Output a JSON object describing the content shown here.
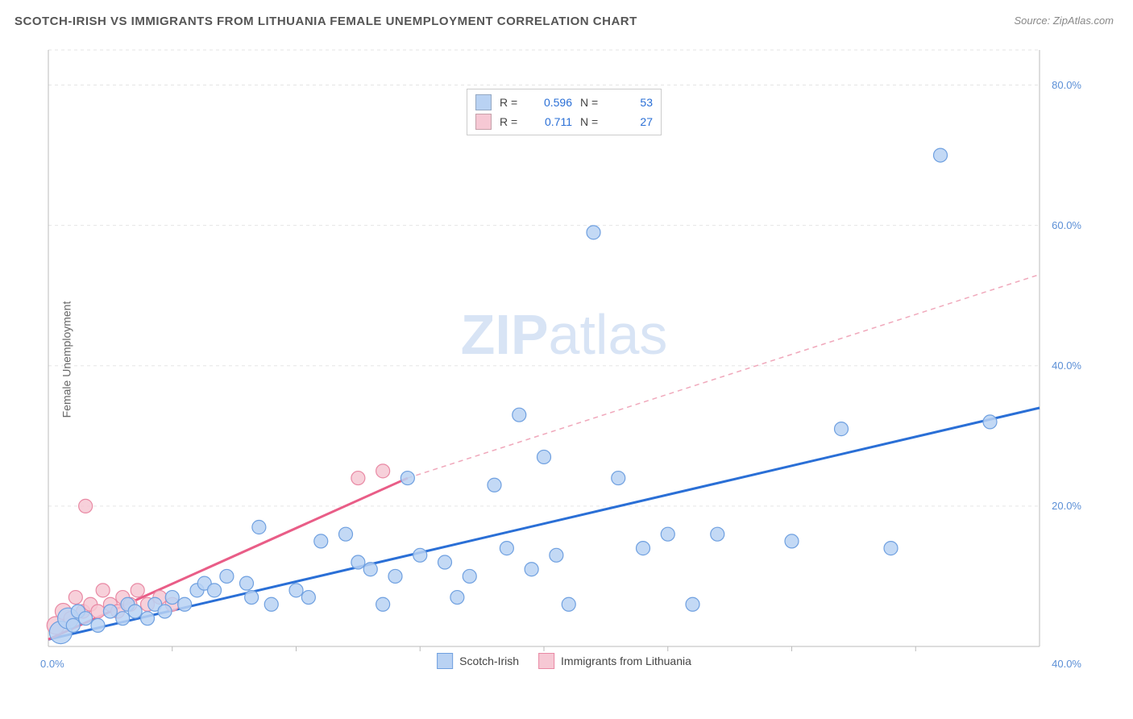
{
  "title": "SCOTCH-IRISH VS IMMIGRANTS FROM LITHUANIA FEMALE UNEMPLOYMENT CORRELATION CHART",
  "source": "Source: ZipAtlas.com",
  "y_axis_label": "Female Unemployment",
  "watermark": {
    "part1": "ZIP",
    "part2": "atlas"
  },
  "chart": {
    "type": "scatter",
    "background_color": "#ffffff",
    "grid_color": "#e5e5e5",
    "grid_dash": "4,4",
    "axis_color": "#bbbbbb",
    "tick_color": "#5b8fd6",
    "xlim": [
      0,
      40
    ],
    "ylim": [
      0,
      85
    ],
    "x_ticks": [
      {
        "v": 0,
        "label": "0.0%"
      },
      {
        "v": 40,
        "label": "40.0%"
      }
    ],
    "x_minor_ticks": [
      5,
      10,
      15,
      20,
      25,
      30,
      35
    ],
    "y_ticks": [
      {
        "v": 20,
        "label": "20.0%"
      },
      {
        "v": 40,
        "label": "40.0%"
      },
      {
        "v": 60,
        "label": "60.0%"
      },
      {
        "v": 80,
        "label": "80.0%"
      }
    ],
    "series": [
      {
        "name": "Scotch-Irish",
        "color_fill": "#b9d2f3",
        "color_stroke": "#6fa0e0",
        "marker_radius": 8.5,
        "line": {
          "x1": 0,
          "y1": 1,
          "x2": 40,
          "y2": 34,
          "stroke": "#2a6fd6",
          "width": 3,
          "dash": "none"
        },
        "points": [
          {
            "x": 0.5,
            "y": 2,
            "r": 14
          },
          {
            "x": 0.8,
            "y": 4,
            "r": 13
          },
          {
            "x": 1,
            "y": 3
          },
          {
            "x": 1.2,
            "y": 5
          },
          {
            "x": 1.5,
            "y": 4
          },
          {
            "x": 2,
            "y": 3
          },
          {
            "x": 2.5,
            "y": 5
          },
          {
            "x": 3,
            "y": 4
          },
          {
            "x": 3.2,
            "y": 6
          },
          {
            "x": 3.5,
            "y": 5
          },
          {
            "x": 4,
            "y": 4
          },
          {
            "x": 4.3,
            "y": 6
          },
          {
            "x": 4.7,
            "y": 5
          },
          {
            "x": 5,
            "y": 7
          },
          {
            "x": 5.5,
            "y": 6
          },
          {
            "x": 6,
            "y": 8
          },
          {
            "x": 6.3,
            "y": 9
          },
          {
            "x": 6.7,
            "y": 8
          },
          {
            "x": 7.2,
            "y": 10
          },
          {
            "x": 8,
            "y": 9
          },
          {
            "x": 8.2,
            "y": 7
          },
          {
            "x": 8.5,
            "y": 17
          },
          {
            "x": 9,
            "y": 6
          },
          {
            "x": 10,
            "y": 8
          },
          {
            "x": 10.5,
            "y": 7
          },
          {
            "x": 11,
            "y": 15
          },
          {
            "x": 12,
            "y": 16
          },
          {
            "x": 12.5,
            "y": 12
          },
          {
            "x": 13,
            "y": 11
          },
          {
            "x": 13.5,
            "y": 6
          },
          {
            "x": 14,
            "y": 10
          },
          {
            "x": 14.5,
            "y": 24
          },
          {
            "x": 15,
            "y": 13
          },
          {
            "x": 16,
            "y": 12
          },
          {
            "x": 16.5,
            "y": 7
          },
          {
            "x": 17,
            "y": 10
          },
          {
            "x": 18,
            "y": 23
          },
          {
            "x": 18.5,
            "y": 14
          },
          {
            "x": 19,
            "y": 33
          },
          {
            "x": 19.5,
            "y": 11
          },
          {
            "x": 20,
            "y": 27
          },
          {
            "x": 20.5,
            "y": 13
          },
          {
            "x": 21,
            "y": 6
          },
          {
            "x": 22,
            "y": 59
          },
          {
            "x": 23,
            "y": 24
          },
          {
            "x": 24,
            "y": 14
          },
          {
            "x": 25,
            "y": 16
          },
          {
            "x": 26,
            "y": 6
          },
          {
            "x": 27,
            "y": 16
          },
          {
            "x": 30,
            "y": 15
          },
          {
            "x": 32,
            "y": 31
          },
          {
            "x": 34,
            "y": 14
          },
          {
            "x": 36,
            "y": 70
          },
          {
            "x": 38,
            "y": 32
          }
        ]
      },
      {
        "name": "Immigrants from Lithuania",
        "color_fill": "#f6c8d4",
        "color_stroke": "#e989a4",
        "marker_radius": 8.5,
        "line": {
          "x1": 0,
          "y1": 1,
          "x2": 14.5,
          "y2": 24,
          "stroke": "#e95d87",
          "width": 3,
          "dash": "none"
        },
        "line_ext": {
          "x1": 14.5,
          "y1": 24,
          "x2": 40,
          "y2": 53,
          "stroke": "#f0a8bb",
          "width": 1.5,
          "dash": "6,5"
        },
        "points": [
          {
            "x": 0.3,
            "y": 3,
            "r": 11
          },
          {
            "x": 0.6,
            "y": 5,
            "r": 10
          },
          {
            "x": 0.9,
            "y": 4
          },
          {
            "x": 1.1,
            "y": 7
          },
          {
            "x": 1.4,
            "y": 5
          },
          {
            "x": 1.7,
            "y": 6
          },
          {
            "x": 2,
            "y": 5
          },
          {
            "x": 2.2,
            "y": 8
          },
          {
            "x": 1.5,
            "y": 20
          },
          {
            "x": 2.5,
            "y": 6
          },
          {
            "x": 2.8,
            "y": 5
          },
          {
            "x": 3,
            "y": 7
          },
          {
            "x": 3.3,
            "y": 6
          },
          {
            "x": 3.6,
            "y": 8
          },
          {
            "x": 4,
            "y": 6
          },
          {
            "x": 4.5,
            "y": 7
          },
          {
            "x": 5,
            "y": 6
          },
          {
            "x": 12.5,
            "y": 24
          },
          {
            "x": 13.5,
            "y": 25
          }
        ]
      }
    ],
    "legend_top": [
      {
        "swatch": "#b9d2f3",
        "r_label": "R =",
        "r_val": "0.596",
        "n_label": "N =",
        "n_val": "53"
      },
      {
        "swatch": "#f6c8d4",
        "r_label": "R =",
        "r_val": "0.711",
        "n_label": "N =",
        "n_val": "27"
      }
    ],
    "legend_bottom": [
      {
        "swatch": "#b9d2f3",
        "stroke": "#6fa0e0",
        "label": "Scotch-Irish"
      },
      {
        "swatch": "#f6c8d4",
        "stroke": "#e989a4",
        "label": "Immigrants from Lithuania"
      }
    ]
  }
}
